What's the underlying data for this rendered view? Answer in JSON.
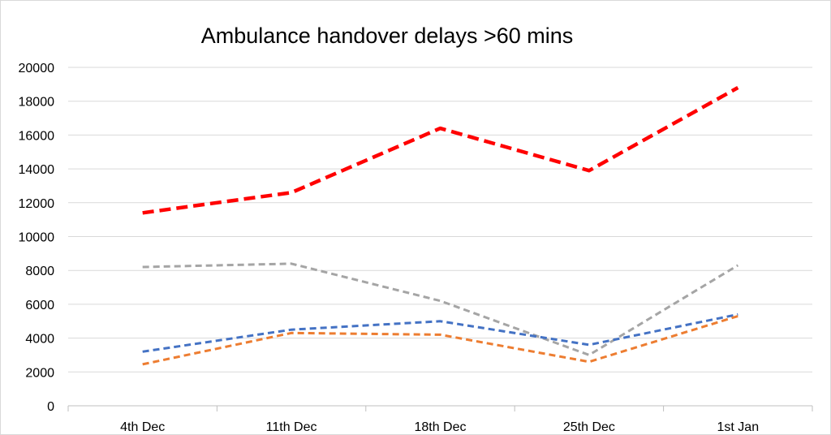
{
  "chart_data": {
    "type": "line",
    "title": "Ambulance handover delays >60 mins",
    "xlabel": "",
    "ylabel": "",
    "categories": [
      "4th Dec",
      "11th Dec",
      "18th Dec",
      "25th Dec",
      "1st Jan"
    ],
    "ylim": [
      0,
      20000
    ],
    "yticks": [
      0,
      2000,
      4000,
      6000,
      8000,
      10000,
      12000,
      14000,
      16000,
      18000,
      20000
    ],
    "grid": true,
    "legend": "none",
    "series": [
      {
        "color": "#ff0000",
        "style": "dashed",
        "values": [
          11400,
          12600,
          16400,
          13900,
          18800
        ]
      },
      {
        "color": "#a5a5a5",
        "style": "dashed",
        "values": [
          8200,
          8400,
          6200,
          3000,
          8300
        ]
      },
      {
        "color": "#4472c4",
        "style": "dashed",
        "values": [
          3200,
          4500,
          5000,
          3600,
          5400
        ]
      },
      {
        "color": "#ed7d31",
        "style": "dashed",
        "values": [
          2450,
          4300,
          4200,
          2600,
          5300
        ]
      }
    ]
  }
}
